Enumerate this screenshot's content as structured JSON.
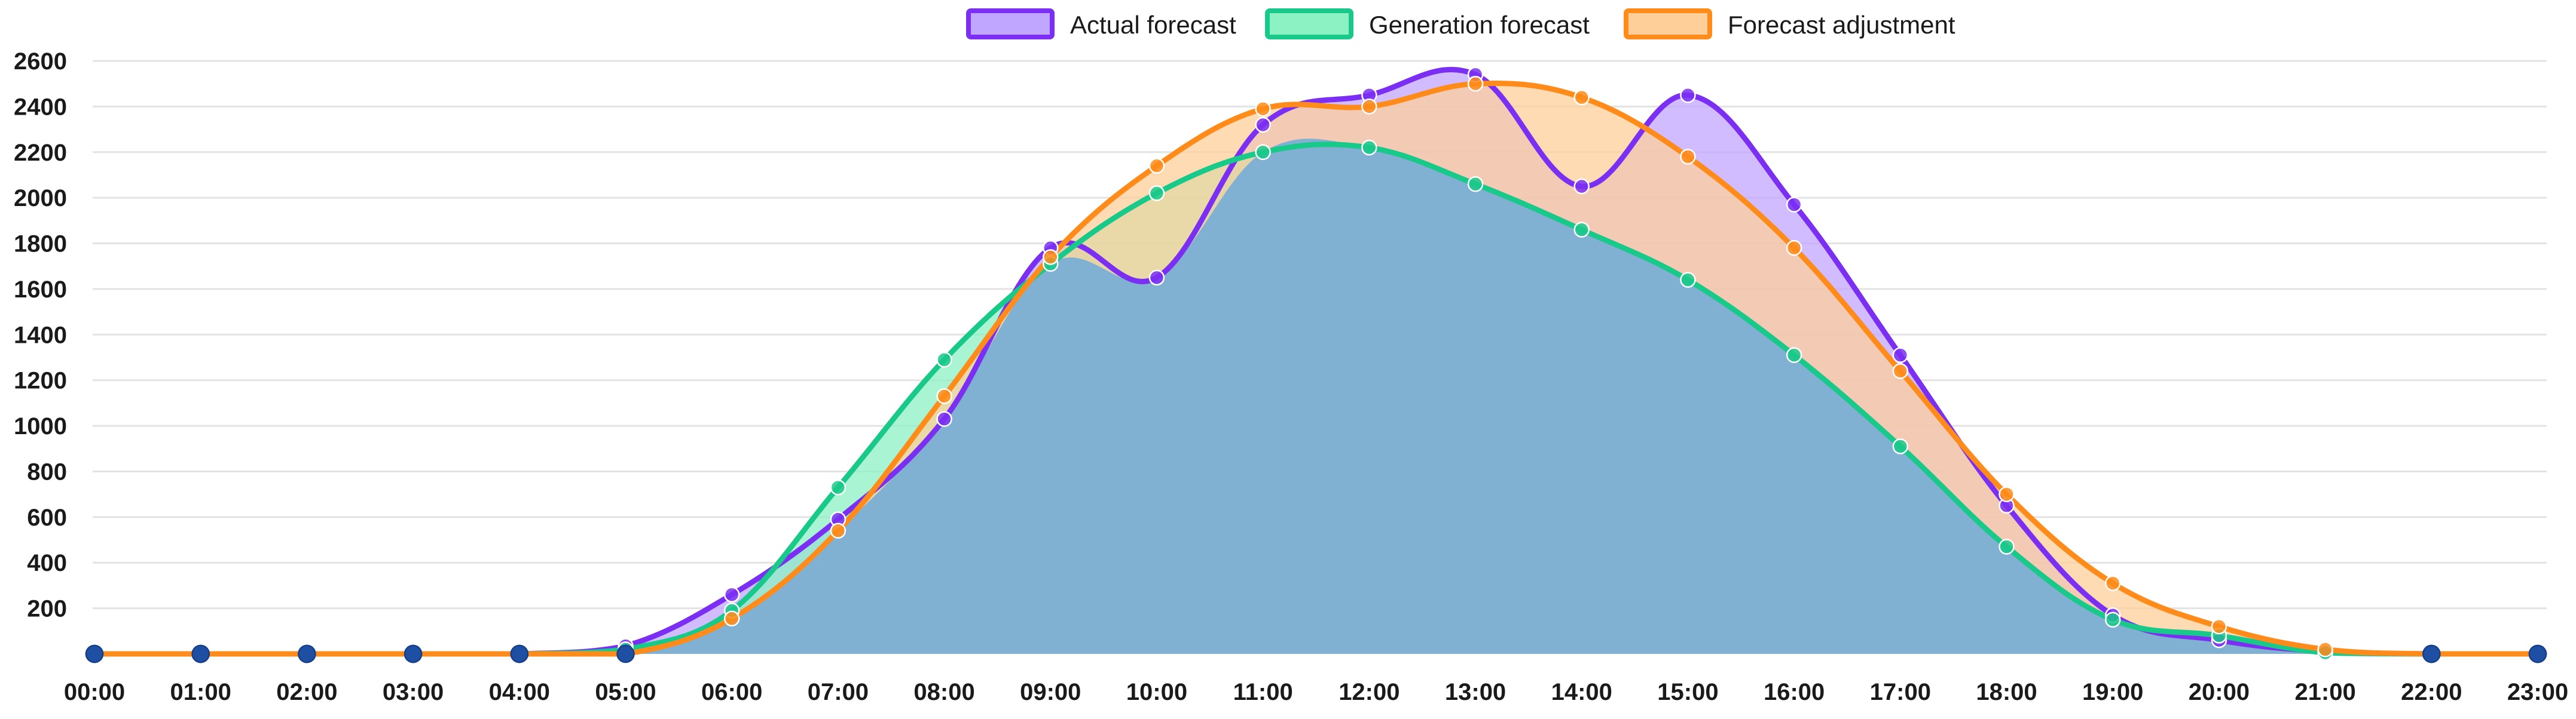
{
  "chart_data": {
    "type": "area",
    "title": "",
    "xlabel": "",
    "ylabel": "",
    "categories": [
      "00:00",
      "01:00",
      "02:00",
      "03:00",
      "04:00",
      "05:00",
      "06:00",
      "07:00",
      "08:00",
      "09:00",
      "10:00",
      "11:00",
      "12:00",
      "13:00",
      "14:00",
      "15:00",
      "16:00",
      "17:00",
      "18:00",
      "19:00",
      "20:00",
      "21:00",
      "22:00",
      "23:00"
    ],
    "yticks": [
      200,
      400,
      600,
      800,
      1000,
      1200,
      1400,
      1600,
      1800,
      2000,
      2200,
      2400,
      2600
    ],
    "ylim": [
      0,
      2600
    ],
    "grid": true,
    "legend_position": "top",
    "series": [
      {
        "name": "Actual forecast",
        "line_color": "#7b2ff2",
        "fill_color": "#c0a6ff",
        "values": [
          0,
          0,
          0,
          0,
          0,
          35,
          260,
          590,
          1030,
          1780,
          1650,
          2320,
          2450,
          2540,
          2050,
          2450,
          1970,
          1310,
          650,
          170,
          60,
          10,
          0,
          0
        ]
      },
      {
        "name": "Generation forecast",
        "line_color": "#19c98a",
        "fill_color": "#8cf2c4",
        "values": [
          0,
          0,
          0,
          0,
          0,
          20,
          190,
          730,
          1290,
          1710,
          2020,
          2200,
          2220,
          2060,
          1860,
          1640,
          1310,
          910,
          470,
          150,
          80,
          5,
          0,
          0
        ]
      },
      {
        "name": "Forecast adjustment",
        "line_color": "#ff8c1a",
        "fill_color": "#ffcf99",
        "values": [
          0,
          0,
          0,
          0,
          0,
          0,
          155,
          540,
          1130,
          1740,
          2140,
          2390,
          2400,
          2500,
          2440,
          2180,
          1780,
          1240,
          700,
          310,
          120,
          20,
          0,
          0
        ]
      }
    ],
    "common_fill_color": "#7aaed4"
  }
}
